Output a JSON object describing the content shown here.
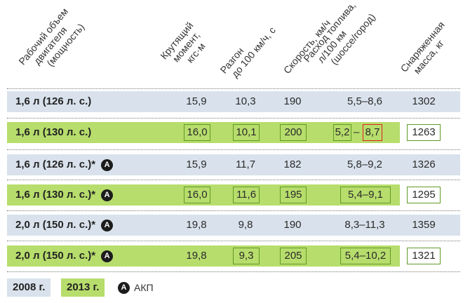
{
  "headers": {
    "volume": [
      "Рабочий объем",
      "двигателя",
      "(мощность)"
    ],
    "torque": [
      "Крутящий",
      "момент,",
      "кгс·м"
    ],
    "accel": [
      "Разгон",
      "до 100 км/ч, с"
    ],
    "speed": [
      "Скорость, км/ч"
    ],
    "fuel": [
      "Расход топлива,",
      "л/100 км",
      "(шоссе/город)"
    ],
    "mass": [
      "Снаряженная",
      "масса, кг"
    ]
  },
  "rows": [
    {
      "label": "1,6 л (126 л. с.)",
      "akp": false,
      "year": "2008",
      "torque": "15,9",
      "accel": "10,3",
      "speed": "190",
      "fuel": "5,5–8,6",
      "mass": "1302"
    },
    {
      "label": "1,6 л (130 л. с.)",
      "akp": false,
      "year": "2013",
      "torque": "16,0",
      "accel": "10,1",
      "speed": "200",
      "fuel_a": "5,2",
      "fuel_sep": "–",
      "fuel_b": "8,7",
      "mass": "1263"
    },
    {
      "label": "1,6 л (126 л. с.)*",
      "akp": true,
      "year": "2008",
      "torque": "15,9",
      "accel": "11,7",
      "speed": "182",
      "fuel": "5,8–9,2",
      "mass": "1326"
    },
    {
      "label": "1,6 л (130 л. с.)*",
      "akp": true,
      "year": "2013",
      "torque": "16,0",
      "accel": "11,6",
      "speed": "195",
      "fuel": "5,4–9,1",
      "mass": "1295"
    },
    {
      "label": "2,0 л (150 л. с.)*",
      "akp": true,
      "year": "2008",
      "torque": "19,8",
      "accel": "9,8",
      "speed": "190",
      "fuel": "8,3–11,3",
      "mass": "1359"
    },
    {
      "label": "2,0 л (150 л. с.)*",
      "akp": true,
      "year": "2013",
      "torque": "19,8",
      "accel": "9,3",
      "speed": "205",
      "fuel": "5,4–10,2",
      "mass": "1321"
    }
  ],
  "akp_icon": "A",
  "legend": {
    "y2008": "2008 г.",
    "y2013": "2013 г.",
    "akp": "АКП"
  },
  "colors": {
    "blue_row": "#d9e2ec",
    "green_row": "#b7dd6c",
    "box_border": "#5f9a26",
    "highlight": "#e02020"
  }
}
